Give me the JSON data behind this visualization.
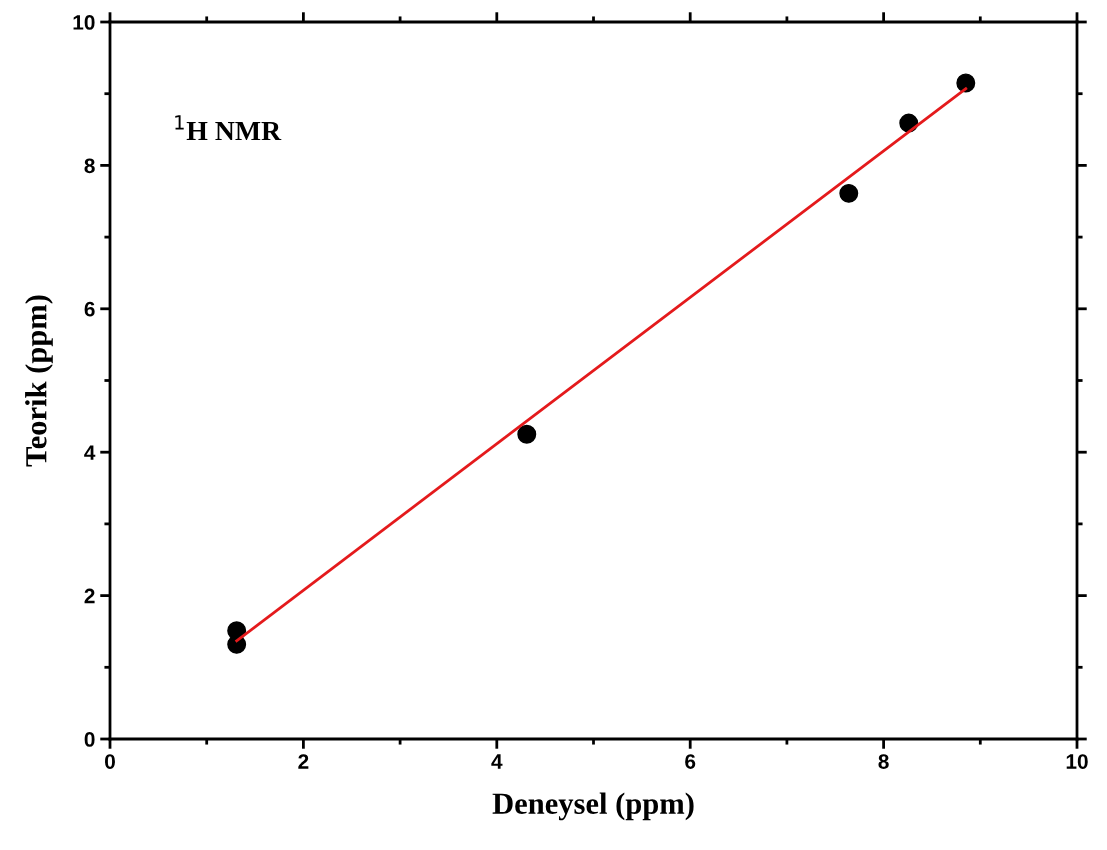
{
  "chart_data": {
    "type": "scatter",
    "xlabel": "Deneysel (ppm)",
    "ylabel": "Teorik (ppm)",
    "annotations": [
      "$^{1}$H NMR"
    ],
    "xlim": [
      0,
      10
    ],
    "ylim": [
      0,
      10
    ],
    "xticks": [
      0,
      2,
      4,
      6,
      8,
      10
    ],
    "yticks": [
      0,
      2,
      4,
      6,
      8,
      10
    ],
    "grid": false,
    "legend": false,
    "series": [
      {
        "marker": "circle",
        "color": "#000000",
        "x": [
          1.31,
          1.31,
          4.31,
          7.64,
          8.26,
          8.85
        ],
        "values": [
          1.51,
          1.32,
          4.25,
          7.61,
          8.59,
          9.15
        ]
      },
      {
        "type": "line",
        "color": "#e41a1c",
        "line_style": "solid",
        "x": [
          1.31,
          8.85
        ],
        "values": [
          1.37,
          9.07
        ]
      }
    ]
  }
}
